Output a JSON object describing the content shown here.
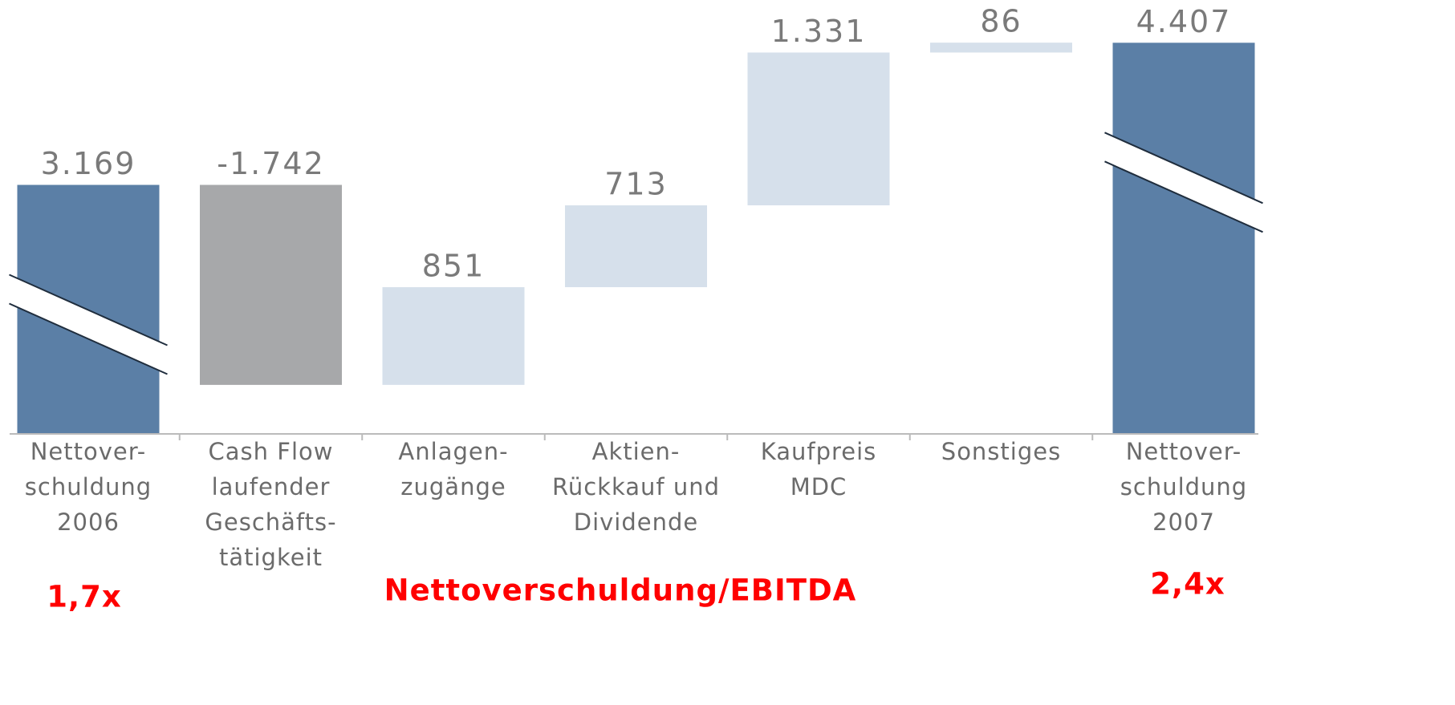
{
  "chart_data": {
    "type": "waterfall",
    "categories": [
      [
        "Nettover-",
        "schuldung",
        "2006"
      ],
      [
        "Cash Flow",
        "laufender",
        "Geschäfts-",
        "tätigkeit"
      ],
      [
        "Anlagen-",
        "zugänge"
      ],
      [
        "Aktien-",
        "Rückkauf und",
        "Dividende"
      ],
      [
        "Kaufpreis",
        "MDC"
      ],
      [
        "Sonstiges"
      ],
      [
        "Nettover-",
        "schuldung",
        "2007"
      ]
    ],
    "values": [
      3169,
      -1742,
      851,
      713,
      1331,
      86,
      4407
    ],
    "value_labels": [
      "3.169",
      "-1.742",
      "851",
      "713",
      "1.331",
      "86",
      "4.407"
    ],
    "is_total": [
      true,
      false,
      false,
      false,
      false,
      false,
      true
    ],
    "colors": {
      "total": "#5b7fa6",
      "increase": "#d6e0eb",
      "decrease": "#a7a8aa"
    },
    "ylim": [
      1000,
      4500
    ],
    "axis_break": true,
    "annotations": [
      "1,7x",
      "Nettoverschuldung/EBITDA",
      "2,4x"
    ],
    "annotation_color": "#ff0000"
  }
}
